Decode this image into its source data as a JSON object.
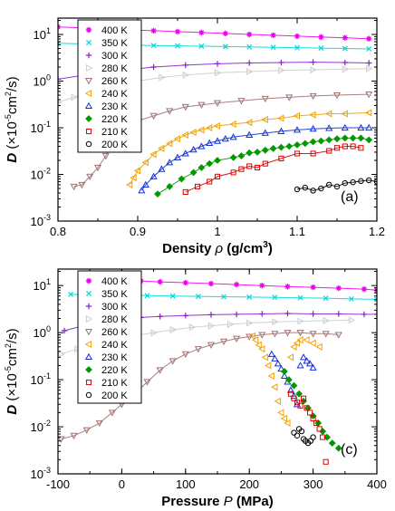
{
  "chart_data": [
    {
      "type": "scatter",
      "panel_label": "(a)",
      "xlabel": "Density ρ (g/cm3)",
      "xlabel_parts": {
        "main": "Density ",
        "symbol": "ρ",
        "unit_pre": "(g/cm",
        "unit_sup": "3",
        "unit_post": ")"
      },
      "ylabel_parts": {
        "symbol": "D",
        "pre": "(×10",
        "sup1": "-5",
        "mid": "cm",
        "sup2": "2",
        "post": "/s)"
      },
      "xlim": [
        0.8,
        1.2
      ],
      "ylim_log10": [
        -3,
        1.35
      ],
      "x_scale": "linear",
      "y_scale": "log",
      "x_ticks": [
        "0.8",
        "0.9",
        "1",
        "1.1",
        "1.2"
      ],
      "x_tick_values": [
        0.8,
        0.9,
        1.0,
        1.1,
        1.2
      ],
      "y_tick_exponents": [
        -3,
        -2,
        -1,
        0,
        1
      ],
      "y_tick_base": "10",
      "legend_position": "top-left",
      "series": [
        {
          "name": "400 K",
          "color": "#ee00ee",
          "marker": "star",
          "x": [
            0.8,
            0.83,
            0.86,
            0.89,
            0.92,
            0.95,
            0.98,
            1.01,
            1.04,
            1.07,
            1.1,
            1.13,
            1.16,
            1.19
          ],
          "y": [
            14.5,
            13.8,
            13.2,
            12.5,
            12.0,
            11.5,
            11.0,
            10.5,
            10.0,
            9.6,
            9.2,
            8.8,
            8.5,
            8.1
          ]
        },
        {
          "name": "350 K",
          "color": "#00d8d8",
          "marker": "x",
          "x": [
            0.8,
            0.83,
            0.86,
            0.89,
            0.92,
            0.95,
            0.98,
            1.01,
            1.04,
            1.07,
            1.1,
            1.13,
            1.16,
            1.19
          ],
          "y": [
            6.5,
            6.3,
            6.1,
            5.9,
            5.8,
            5.7,
            5.6,
            5.5,
            5.4,
            5.3,
            5.2,
            5.1,
            5.0,
            4.9
          ]
        },
        {
          "name": "300 K",
          "color": "#8822cc",
          "marker": "plus",
          "x": [
            0.8,
            0.84,
            0.88,
            0.92,
            0.96,
            1.0,
            1.04,
            1.08,
            1.12,
            1.16,
            1.19
          ],
          "y": [
            1.1,
            1.4,
            1.7,
            2.0,
            2.2,
            2.35,
            2.45,
            2.5,
            2.55,
            2.5,
            2.45
          ]
        },
        {
          "name": "280 K",
          "color": "#cccccc",
          "marker": "triangle-right",
          "x": [
            0.8,
            0.82,
            0.84,
            0.86,
            0.88,
            0.9,
            0.93,
            0.96,
            1.0,
            1.04,
            1.08,
            1.12,
            1.16,
            1.19
          ],
          "y": [
            0.35,
            0.45,
            0.6,
            0.75,
            0.9,
            1.0,
            1.2,
            1.35,
            1.5,
            1.6,
            1.7,
            1.75,
            1.8,
            1.85
          ]
        },
        {
          "name": "260 K",
          "color": "#a07070",
          "marker": "triangle-down",
          "x": [
            0.82,
            0.83,
            0.84,
            0.85,
            0.86,
            0.87,
            0.88,
            0.89,
            0.9,
            0.92,
            0.94,
            0.96,
            0.98,
            1.0,
            1.03,
            1.06,
            1.09,
            1.12,
            1.15,
            1.19
          ],
          "y": [
            0.0055,
            0.006,
            0.009,
            0.014,
            0.025,
            0.05,
            0.08,
            0.11,
            0.14,
            0.18,
            0.23,
            0.28,
            0.31,
            0.34,
            0.38,
            0.42,
            0.45,
            0.48,
            0.5,
            0.52
          ]
        },
        {
          "name": "240 K",
          "color": "#f0a000",
          "marker": "triangle-left",
          "x": [
            0.89,
            0.895,
            0.9,
            0.91,
            0.92,
            0.93,
            0.94,
            0.95,
            0.96,
            0.97,
            0.98,
            0.99,
            1.0,
            1.02,
            1.04,
            1.06,
            1.08,
            1.1,
            1.12,
            1.14,
            1.16,
            1.19
          ],
          "y": [
            0.006,
            0.0085,
            0.012,
            0.018,
            0.027,
            0.036,
            0.046,
            0.058,
            0.07,
            0.08,
            0.09,
            0.1,
            0.11,
            0.12,
            0.13,
            0.15,
            0.16,
            0.18,
            0.19,
            0.2,
            0.2,
            0.21
          ]
        },
        {
          "name": "230 K",
          "color": "#1030dd",
          "marker": "triangle-up",
          "x": [
            0.905,
            0.91,
            0.92,
            0.93,
            0.94,
            0.95,
            0.96,
            0.97,
            0.98,
            0.99,
            1.0,
            1.01,
            1.02,
            1.04,
            1.06,
            1.08,
            1.1,
            1.12,
            1.14,
            1.16,
            1.18,
            1.19
          ],
          "y": [
            0.0045,
            0.006,
            0.009,
            0.013,
            0.018,
            0.023,
            0.028,
            0.034,
            0.04,
            0.047,
            0.052,
            0.058,
            0.063,
            0.07,
            0.077,
            0.084,
            0.09,
            0.095,
            0.098,
            0.1,
            0.1,
            0.1
          ]
        },
        {
          "name": "220 K",
          "color": "#009900",
          "marker": "diamond",
          "x": [
            0.925,
            0.94,
            0.955,
            0.97,
            0.98,
            0.99,
            1.0,
            1.02,
            1.03,
            1.04,
            1.05,
            1.06,
            1.07,
            1.08,
            1.09,
            1.1,
            1.11,
            1.12,
            1.13,
            1.14,
            1.15,
            1.16,
            1.17,
            1.18,
            1.19
          ],
          "y": [
            0.0038,
            0.0055,
            0.008,
            0.011,
            0.014,
            0.017,
            0.02,
            0.023,
            0.025,
            0.029,
            0.03,
            0.033,
            0.036,
            0.038,
            0.04,
            0.043,
            0.046,
            0.05,
            0.052,
            0.055,
            0.058,
            0.06,
            0.06,
            0.06,
            0.055
          ]
        },
        {
          "name": "210 K",
          "color": "#dd0000",
          "marker": "square",
          "x": [
            0.96,
            0.975,
            0.99,
            1.0,
            1.02,
            1.03,
            1.04,
            1.05,
            1.06,
            1.08,
            1.1,
            1.12,
            1.14,
            1.15,
            1.16,
            1.17,
            1.18
          ],
          "y": [
            0.0042,
            0.0055,
            0.007,
            0.009,
            0.011,
            0.013,
            0.015,
            0.014,
            0.017,
            0.022,
            0.028,
            0.028,
            0.032,
            0.037,
            0.04,
            0.04,
            0.037
          ]
        },
        {
          "name": "200 K",
          "color": "#000000",
          "marker": "circle",
          "x": [
            1.1,
            1.11,
            1.12,
            1.13,
            1.14,
            1.15,
            1.16,
            1.17,
            1.18,
            1.19,
            1.2
          ],
          "y": [
            0.0048,
            0.0052,
            0.0045,
            0.005,
            0.006,
            0.0055,
            0.0065,
            0.0068,
            0.0072,
            0.0075,
            0.007
          ]
        }
      ]
    },
    {
      "type": "scatter",
      "panel_label": "(c)",
      "xlabel_parts": {
        "main": "Pressure ",
        "symbol": "P",
        "unit_pre": "(MPa)",
        "unit_sup": "",
        "unit_post": ""
      },
      "ylabel_parts": {
        "symbol": "D",
        "pre": "(×10",
        "sup1": "-5",
        "mid": "cm",
        "sup2": "2",
        "post": "/s)"
      },
      "xlim": [
        -100,
        400
      ],
      "ylim_log10": [
        -3,
        1.35
      ],
      "x_scale": "linear",
      "y_scale": "log",
      "x_ticks": [
        "-100",
        "0",
        "100",
        "200",
        "300",
        "400"
      ],
      "x_tick_values": [
        -100,
        0,
        100,
        200,
        300,
        400
      ],
      "y_tick_exponents": [
        -3,
        -2,
        -1,
        0,
        1
      ],
      "y_tick_base": "10",
      "legend_position": "top-left",
      "series": [
        {
          "name": "400 K",
          "color": "#ee00ee",
          "marker": "star",
          "x": [
            -40,
            -20,
            0,
            30,
            60,
            100,
            140,
            180,
            220,
            260,
            300,
            340,
            380,
            400
          ],
          "y": [
            14,
            13.5,
            13,
            12.5,
            12,
            11.5,
            11,
            10.5,
            10,
            9.5,
            9.2,
            8.8,
            8.4,
            8
          ]
        },
        {
          "name": "350 K",
          "color": "#00d8d8",
          "marker": "x",
          "x": [
            -80,
            -50,
            -20,
            10,
            40,
            80,
            120,
            160,
            200,
            240,
            280,
            320,
            360,
            400
          ],
          "y": [
            6.5,
            6.4,
            6.3,
            6.2,
            6.1,
            6,
            5.9,
            5.8,
            5.7,
            5.6,
            5.5,
            5.4,
            5.2,
            5.1
          ]
        },
        {
          "name": "300 K",
          "color": "#8822cc",
          "marker": "plus",
          "x": [
            -90,
            -60,
            -30,
            0,
            30,
            60,
            100,
            140,
            180,
            220,
            260,
            300,
            340,
            380,
            400
          ],
          "y": [
            1.1,
            1.4,
            1.7,
            2,
            2.1,
            2.2,
            2.3,
            2.4,
            2.45,
            2.5,
            2.55,
            2.5,
            2.5,
            2.45,
            2.45
          ]
        },
        {
          "name": "280 K",
          "color": "#cccccc",
          "marker": "triangle-right",
          "x": [
            -95,
            -70,
            -45,
            -20,
            0,
            20,
            50,
            80,
            110,
            140,
            170,
            200,
            240,
            280,
            320,
            360
          ],
          "y": [
            0.35,
            0.45,
            0.55,
            0.65,
            0.75,
            0.85,
            1,
            1.15,
            1.3,
            1.4,
            1.5,
            1.6,
            1.7,
            1.75,
            1.8,
            1.85
          ]
        },
        {
          "name": "260 K",
          "color": "#a07070",
          "marker": "triangle-down",
          "x": [
            -95,
            -75,
            -55,
            -35,
            -15,
            0,
            20,
            40,
            60,
            80,
            100,
            120,
            140,
            160,
            180,
            200,
            220,
            240,
            260,
            280,
            300,
            320,
            340
          ],
          "y": [
            0.0055,
            0.0065,
            0.0085,
            0.012,
            0.02,
            0.03,
            0.05,
            0.09,
            0.16,
            0.25,
            0.35,
            0.45,
            0.55,
            0.65,
            0.75,
            0.82,
            0.9,
            0.95,
            1,
            1,
            0.95,
            0.95,
            0.9
          ]
        },
        {
          "name": "240 K",
          "color": "#f0a000",
          "marker": "triangle-left",
          "x": [
            205,
            210,
            215,
            220,
            225,
            230,
            235,
            240,
            245,
            250,
            255,
            260,
            265,
            270,
            275,
            280,
            290,
            300,
            310
          ],
          "y": [
            0.85,
            0.7,
            0.55,
            0.45,
            0.3,
            0.2,
            0.12,
            0.07,
            0.035,
            0.02,
            0.015,
            0.012,
            0.3,
            0.5,
            0.6,
            0.7,
            0.7,
            0.6,
            0.5
          ]
        },
        {
          "name": "230 K",
          "color": "#1030dd",
          "marker": "triangle-up",
          "x": [
            235,
            240,
            245,
            250,
            255,
            260,
            265,
            270,
            275,
            280,
            285,
            290,
            295,
            300
          ],
          "y": [
            0.35,
            0.28,
            0.22,
            0.17,
            0.12,
            0.09,
            0.06,
            0.045,
            0.03,
            0.2,
            0.3,
            0.25,
            0.22,
            0.18
          ]
        },
        {
          "name": "220 K",
          "color": "#009900",
          "marker": "diamond",
          "x": [
            255,
            262,
            270,
            278,
            285,
            292,
            300,
            308,
            315,
            322,
            330,
            340
          ],
          "y": [
            0.15,
            0.1,
            0.075,
            0.05,
            0.035,
            0.025,
            0.017,
            0.012,
            0.008,
            0.006,
            0.0045,
            0.0035
          ]
        },
        {
          "name": "210 K",
          "color": "#dd0000",
          "marker": "square",
          "x": [
            265,
            270,
            275,
            280,
            285,
            290,
            295,
            300,
            305,
            310,
            315,
            320
          ],
          "y": [
            0.05,
            0.04,
            0.033,
            0.028,
            0.04,
            0.025,
            0.02,
            0.015,
            0.012,
            0.009,
            0.006,
            0.0018
          ]
        },
        {
          "name": "200 K",
          "color": "#000000",
          "marker": "circle",
          "x": [
            270,
            275,
            278,
            282,
            285,
            288,
            292,
            296,
            300
          ],
          "y": [
            0.0075,
            0.0065,
            0.009,
            0.008,
            0.0055,
            0.005,
            0.0045,
            0.005,
            0.006
          ]
        }
      ]
    }
  ]
}
